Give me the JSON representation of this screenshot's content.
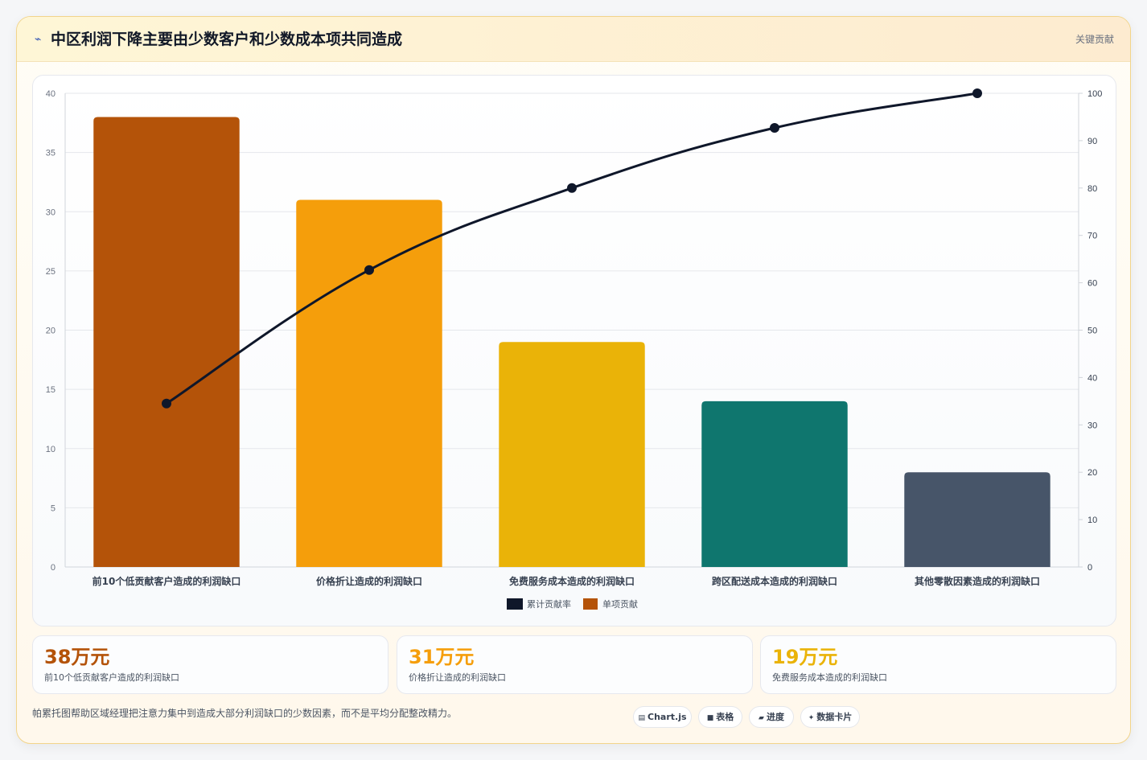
{
  "header": {
    "icon": "bolt-icon",
    "title": "中区利润下降主要由少数客户和少数成本项共同造成",
    "tag": "关键贡献"
  },
  "chart_data": {
    "type": "bar",
    "categories": [
      "前10个低贡献客户造成的利润缺口",
      "价格折让造成的利润缺口",
      "免费服务成本造成的利润缺口",
      "跨区配送成本造成的利润缺口",
      "其他零散因素造成的利润缺口"
    ],
    "series": [
      {
        "name": "单项贡献",
        "type": "bar",
        "axis": "left",
        "values": [
          38,
          31,
          19,
          14,
          8
        ],
        "colors": [
          "#b45309",
          "#f59e0b",
          "#eab308",
          "#0f766e",
          "#475569"
        ]
      },
      {
        "name": "累计贡献率",
        "type": "line",
        "axis": "right",
        "values": [
          34.5,
          62.7,
          80.0,
          92.7,
          100.0
        ],
        "color": "#0f172a"
      }
    ],
    "yleft_ticks": [
      "0",
      "5",
      "10",
      "15",
      "20",
      "25",
      "30",
      "35",
      "40"
    ],
    "yright_ticks": [
      "0",
      "10",
      "20",
      "30",
      "40",
      "50",
      "60",
      "70",
      "80",
      "90",
      "100"
    ],
    "ylim_left": [
      0,
      40
    ],
    "ylim_right": [
      0,
      100
    ],
    "legend": {
      "position": "bottom",
      "items": [
        "累计贡献率",
        "单项贡献"
      ]
    },
    "grid": true,
    "grid_color": "#e5e7eb"
  },
  "kpis": [
    {
      "value": "38万元",
      "label": "前10个低贡献客户造成的利润缺口",
      "color": "#b45309"
    },
    {
      "value": "31万元",
      "label": "价格折让造成的利润缺口",
      "color": "#f59e0b"
    },
    {
      "value": "19万元",
      "label": "免费服务成本造成的利润缺口",
      "color": "#eab308"
    }
  ],
  "footer": {
    "text": "帕累托图帮助区域经理把注意力集中到造成大部分利润缺口的少数因素，而不是平均分配整改精力。",
    "chips": [
      {
        "icon": "▤",
        "icon_name": "chart-icon",
        "label": "Chart.js"
      },
      {
        "icon": "■",
        "icon_name": "table-icon",
        "label": "表格"
      },
      {
        "icon": "▰",
        "icon_name": "progress-icon",
        "label": "进度"
      },
      {
        "icon": "✦",
        "icon_name": "sparkle-icon",
        "label": "数据卡片"
      }
    ]
  }
}
